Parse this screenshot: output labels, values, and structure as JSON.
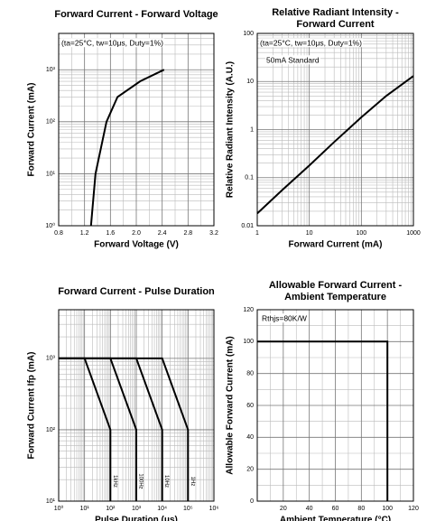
{
  "chart_data": [
    {
      "type": "line",
      "title": [
        "Forward Current - Forward Voltage"
      ],
      "x_label": "Forward Voltage (V)",
      "y_label": "Forward Current (mA)",
      "annotations": [
        "(ta=25°C, tw=10μs, Duty=1%)"
      ],
      "x": [
        1.3,
        1.37,
        1.54,
        1.71,
        2.06,
        2.43
      ],
      "values": [
        1,
        10,
        100,
        300,
        600,
        1000
      ],
      "color": "#000000",
      "xscale": "linear",
      "yscale": "log",
      "grid": true,
      "xlim": [
        0.8,
        3.2
      ],
      "xticks": [
        0.8,
        1.2,
        1.6,
        {
          "value": 2,
          "label": "2.0"
        },
        2.4,
        2.8,
        3.2
      ],
      "ylim": [
        1,
        5000
      ],
      "yticks": [
        {
          "value": 1,
          "label": "10⁰"
        },
        {
          "value": 10,
          "label": "10¹"
        },
        {
          "value": 100,
          "label": "10²"
        },
        {
          "value": 1000,
          "label": "10³"
        }
      ]
    },
    {
      "type": "line",
      "title": [
        "Relative Radiant Intensity -",
        "Forward Current"
      ],
      "x_label": "Forward Current (mA)",
      "y_label": "Relative Radiant Intensity (A.U.)",
      "annotations": [
        "(ta=25°C, tw=10μs, Duty=1%)",
        "50mA Standard"
      ],
      "x": [
        1,
        3,
        10,
        30,
        100,
        300,
        1000
      ],
      "values": [
        0.018,
        0.055,
        0.18,
        0.55,
        1.8,
        5,
        13
      ],
      "color": "#000000",
      "xscale": "log",
      "yscale": "log",
      "grid": true,
      "xlim": [
        1,
        1000
      ],
      "xticks": [
        1,
        10,
        100,
        1000
      ],
      "ylim": [
        0.01,
        100
      ],
      "yticks": [
        0.01,
        0.1,
        1,
        10,
        100
      ]
    },
    {
      "type": "line",
      "title": [
        "Forward Current - Pulse Duration"
      ],
      "x_label": "Pulse Duration (μs)",
      "y_label": "Forward Current Ifp (mA)",
      "xscale": "log",
      "yscale": "log",
      "grid": true,
      "series": [
        {
          "name": "1kHz",
          "color": "#000000",
          "x": [
            1,
            10,
            100,
            100
          ],
          "values": [
            1000,
            1000,
            100,
            10
          ]
        },
        {
          "name": "100Hz",
          "color": "#000000",
          "x": [
            1,
            100,
            1000,
            1000
          ],
          "values": [
            1000,
            1000,
            100,
            10
          ]
        },
        {
          "name": "10Hz",
          "color": "#000000",
          "x": [
            1,
            1000,
            10000,
            10000
          ],
          "values": [
            1000,
            1000,
            100,
            10
          ]
        },
        {
          "name": "1Hz",
          "color": "#000000",
          "x": [
            1,
            10000,
            100000,
            100000
          ],
          "values": [
            1000,
            1000,
            100,
            10
          ]
        }
      ],
      "xlim": [
        1,
        1000000
      ],
      "xticks": [
        {
          "value": 1,
          "label": "10⁰"
        },
        {
          "value": 10,
          "label": "10¹"
        },
        {
          "value": 100,
          "label": "10²"
        },
        {
          "value": 1000,
          "label": "10³"
        },
        {
          "value": 10000,
          "label": "10⁴"
        },
        {
          "value": 100000,
          "label": "10⁵"
        },
        {
          "value": 1000000,
          "label": "10⁶"
        }
      ],
      "ylim": [
        10,
        4800
      ],
      "yticks": [
        {
          "value": 10,
          "label": "10¹"
        },
        {
          "value": 100,
          "label": "10²"
        },
        {
          "value": 1000,
          "label": "10³"
        }
      ]
    },
    {
      "type": "line",
      "title": [
        "Allowable Forward Current -",
        "Ambient Temperature"
      ],
      "x_label": "Ambient Temperature (°C)",
      "y_label": "Allowable Forward Current (mA)",
      "annotations": [
        "Rthjs=80K/W"
      ],
      "x": [
        0,
        100,
        100
      ],
      "values": [
        100,
        100,
        0
      ],
      "color": "#000000",
      "xscale": "linear",
      "yscale": "linear",
      "grid": true,
      "xlim": [
        0,
        120
      ],
      "xticks": [
        20,
        40,
        60,
        80,
        100,
        120
      ],
      "ylim": [
        0,
        120
      ],
      "yticks": [
        0,
        20,
        40,
        60,
        80,
        100,
        120
      ]
    }
  ]
}
